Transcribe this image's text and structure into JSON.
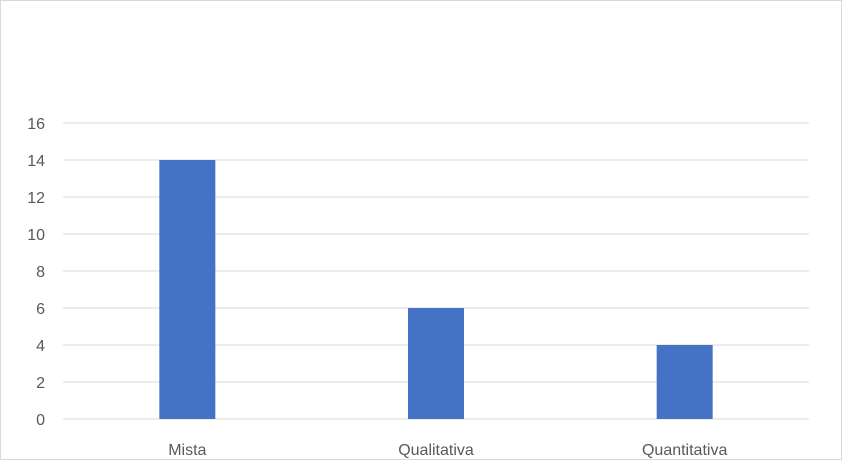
{
  "chart_data": {
    "type": "bar",
    "title": "",
    "xlabel": "",
    "ylabel": "",
    "categories": [
      "Mista",
      "Qualitativa",
      "Quantitativa"
    ],
    "values": [
      14,
      6,
      4
    ],
    "ylim": [
      0,
      16
    ],
    "yticks": [
      "0",
      "2",
      "4",
      "6",
      "8",
      "10",
      "12",
      "14",
      "16"
    ],
    "grid": true,
    "legend": "none",
    "bar_color": "#4472C4",
    "grid_color": "#d9d9d9",
    "text_color": "#595959"
  }
}
